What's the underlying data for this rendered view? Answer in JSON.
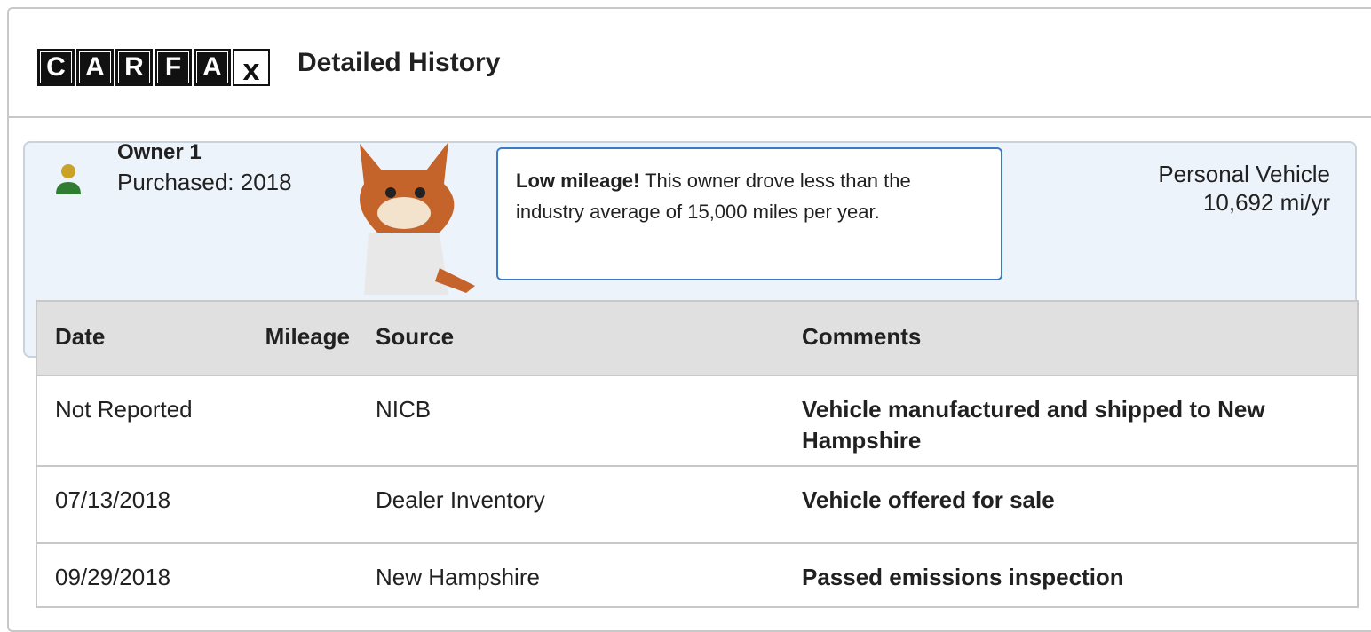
{
  "header": {
    "logo": [
      "C",
      "A",
      "R",
      "F",
      "A",
      "x"
    ],
    "title": "Detailed History"
  },
  "owner": {
    "name": "Owner 1",
    "purchased": "Purchased: 2018",
    "callout": {
      "lead": "Low mileage!",
      "text": " This owner drove less than the industry average of 15,000 miles per year."
    },
    "usage": "Personal Vehicle",
    "mileage": "10,692 mi/yr"
  },
  "table": {
    "columns": [
      "Date",
      "Mileage",
      "Source",
      "Comments"
    ],
    "rows": [
      {
        "date": "Not Reported",
        "source": "NICB",
        "comments": "Vehicle manufactured and shipped to New Hampshire"
      },
      {
        "date": "07/13/2018",
        "source": "Dealer Inventory",
        "comments": "Vehicle offered for sale"
      },
      {
        "date": "09/29/2018",
        "source": "New Hampshire",
        "comments": "Passed emissions inspection"
      }
    ]
  }
}
